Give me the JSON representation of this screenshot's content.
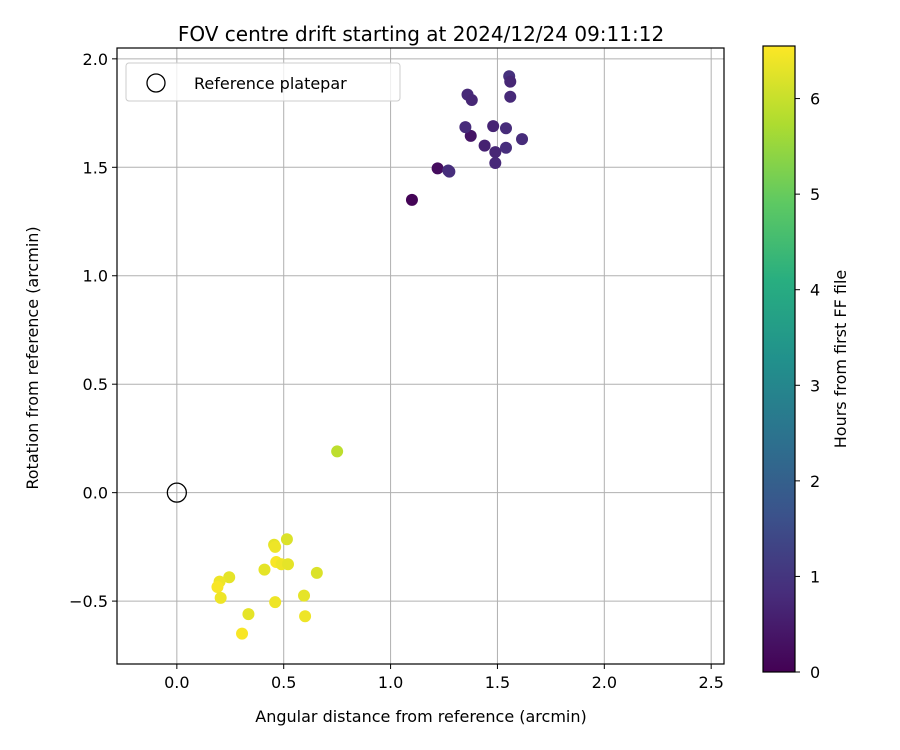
{
  "chart_data": {
    "type": "scatter",
    "title": "FOV centre drift starting at 2024/12/24 09:11:12",
    "xlabel": "Angular distance from reference (arcmin)",
    "ylabel": "Rotation from reference (arcmin)",
    "xlim": [
      -0.28,
      2.56
    ],
    "ylim": [
      -0.79,
      2.05
    ],
    "xticks": [
      0.0,
      0.5,
      1.0,
      1.5,
      2.0,
      2.5
    ],
    "xtick_labels": [
      "0.0",
      "0.5",
      "1.0",
      "1.5",
      "2.0",
      "2.5"
    ],
    "yticks": [
      -0.5,
      0.0,
      0.5,
      1.0,
      1.5,
      2.0
    ],
    "ytick_labels": [
      "−0.5",
      "0.0",
      "0.5",
      "1.0",
      "1.5",
      "2.0"
    ],
    "grid": true,
    "legend": {
      "position": "top-left",
      "entries": [
        "Reference platepar"
      ]
    },
    "reference_point": {
      "x": 0.0,
      "y": 0.0,
      "label": "Reference platepar"
    },
    "colorbar": {
      "label": "Hours from first FF file",
      "colormap": "viridis",
      "range": [
        0,
        6.55
      ],
      "ticks": [
        0,
        1,
        2,
        3,
        4,
        5,
        6
      ],
      "tick_labels": [
        "0",
        "1",
        "2",
        "3",
        "4",
        "5",
        "6"
      ]
    },
    "points": [
      {
        "x": 1.1,
        "y": 1.35,
        "hours": 0.05
      },
      {
        "x": 1.22,
        "y": 1.495,
        "hours": 0.2
      },
      {
        "x": 1.27,
        "y": 1.485,
        "hours": 0.9
      },
      {
        "x": 1.275,
        "y": 1.48,
        "hours": 0.85
      },
      {
        "x": 1.375,
        "y": 1.645,
        "hours": 0.35
      },
      {
        "x": 1.35,
        "y": 1.685,
        "hours": 0.8
      },
      {
        "x": 1.36,
        "y": 1.835,
        "hours": 0.75
      },
      {
        "x": 1.38,
        "y": 1.81,
        "hours": 0.7
      },
      {
        "x": 1.44,
        "y": 1.6,
        "hours": 0.6
      },
      {
        "x": 1.48,
        "y": 1.69,
        "hours": 0.65
      },
      {
        "x": 1.49,
        "y": 1.57,
        "hours": 0.7
      },
      {
        "x": 1.49,
        "y": 1.52,
        "hours": 0.75
      },
      {
        "x": 1.54,
        "y": 1.68,
        "hours": 0.8
      },
      {
        "x": 1.54,
        "y": 1.59,
        "hours": 0.85
      },
      {
        "x": 1.555,
        "y": 1.92,
        "hours": 0.9
      },
      {
        "x": 1.56,
        "y": 1.895,
        "hours": 0.7
      },
      {
        "x": 1.56,
        "y": 1.825,
        "hours": 0.75
      },
      {
        "x": 1.615,
        "y": 1.63,
        "hours": 0.8
      },
      {
        "x": 0.75,
        "y": 0.19,
        "hours": 5.9
      },
      {
        "x": 0.455,
        "y": -0.24,
        "hours": 6.3
      },
      {
        "x": 0.515,
        "y": -0.215,
        "hours": 6.2
      },
      {
        "x": 0.46,
        "y": -0.25,
        "hours": 6.4
      },
      {
        "x": 0.41,
        "y": -0.355,
        "hours": 6.3
      },
      {
        "x": 0.465,
        "y": -0.32,
        "hours": 6.5
      },
      {
        "x": 0.49,
        "y": -0.33,
        "hours": 6.4
      },
      {
        "x": 0.52,
        "y": -0.33,
        "hours": 6.3
      },
      {
        "x": 0.655,
        "y": -0.37,
        "hours": 6.2
      },
      {
        "x": 0.245,
        "y": -0.39,
        "hours": 6.3
      },
      {
        "x": 0.2,
        "y": -0.41,
        "hours": 6.4
      },
      {
        "x": 0.19,
        "y": -0.435,
        "hours": 6.5
      },
      {
        "x": 0.205,
        "y": -0.485,
        "hours": 6.4
      },
      {
        "x": 0.595,
        "y": -0.475,
        "hours": 6.3
      },
      {
        "x": 0.46,
        "y": -0.505,
        "hours": 6.4
      },
      {
        "x": 0.335,
        "y": -0.56,
        "hours": 6.3
      },
      {
        "x": 0.6,
        "y": -0.57,
        "hours": 6.4
      },
      {
        "x": 0.305,
        "y": -0.65,
        "hours": 6.5
      }
    ]
  }
}
